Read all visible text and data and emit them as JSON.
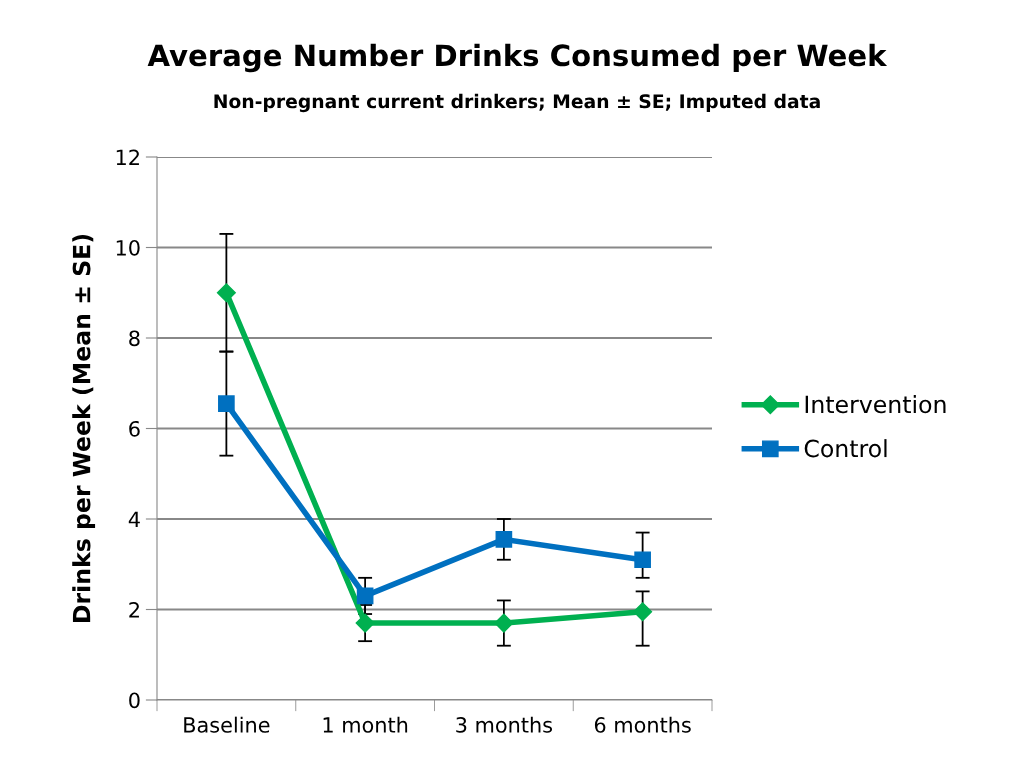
{
  "chart_data": {
    "type": "line",
    "title": "Average Number Drinks Consumed per Week",
    "subtitle": "Non-pregnant current drinkers; Mean ± SE; Imputed data",
    "ylabel": "Drinks per Week (Mean ± SE)",
    "categories": [
      "Baseline",
      "1 month",
      "3 months",
      "6 months"
    ],
    "series": [
      {
        "name": "Intervention",
        "color": "#00b050",
        "marker": "diamond",
        "values": [
          9.0,
          1.7,
          1.7,
          1.95
        ],
        "errors": [
          [
            7.7,
            10.3
          ],
          [
            1.3,
            2.1
          ],
          [
            1.2,
            2.2
          ],
          [
            1.2,
            2.4
          ]
        ]
      },
      {
        "name": "Control",
        "color": "#0070c0",
        "marker": "square",
        "values": [
          6.55,
          2.3,
          3.55,
          3.1
        ],
        "errors": [
          [
            5.4,
            7.7
          ],
          [
            1.9,
            2.7
          ],
          [
            3.1,
            4.0
          ],
          [
            2.7,
            3.7
          ]
        ]
      }
    ],
    "ylim": [
      0,
      12
    ],
    "yticks": [
      0,
      2,
      4,
      6,
      8,
      10,
      12
    ],
    "grid": "y",
    "legend": "right",
    "line_style": "solid"
  }
}
